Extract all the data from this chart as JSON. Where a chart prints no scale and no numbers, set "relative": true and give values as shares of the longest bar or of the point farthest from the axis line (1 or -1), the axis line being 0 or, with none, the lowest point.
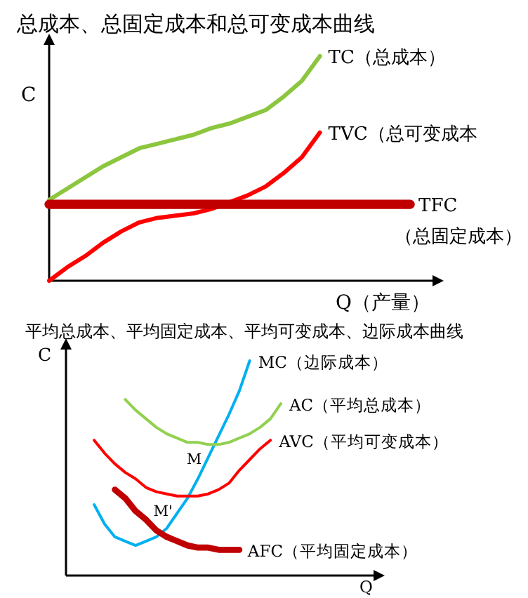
{
  "chart_data": [
    {
      "type": "line",
      "title": "总成本、总固定成本和总可变成本曲线",
      "xlabel": "Q（产量）",
      "ylabel": "C",
      "relative": true,
      "grid": false,
      "marker": "none",
      "categories": [
        null,
        null,
        null,
        null,
        null,
        null,
        null,
        null,
        null,
        null,
        null,
        null,
        null,
        null,
        null,
        null,
        null,
        null,
        null,
        null,
        null
      ],
      "series": [
        {
          "name": "TC（总成本）",
          "color": "#8cc63f",
          "values": [
            0.36,
            0.41,
            0.46,
            0.51,
            0.55,
            0.59,
            0.61,
            0.63,
            0.65,
            0.68,
            0.7,
            0.73,
            0.76,
            0.82,
            0.89,
            1.0,
            null,
            null,
            null,
            null,
            null
          ]
        },
        {
          "name": "TVC（总可变成本",
          "color": "#ff0000",
          "values": [
            0,
            0.06,
            0.11,
            0.17,
            0.22,
            0.26,
            0.28,
            0.29,
            0.3,
            0.32,
            0.35,
            0.38,
            0.42,
            0.48,
            0.55,
            0.66,
            null,
            null,
            null,
            null,
            null
          ]
        },
        {
          "name": "TFC（总固定成本）",
          "color": "#c00000",
          "values": [
            0.34,
            0.34,
            0.34,
            0.34,
            0.34,
            0.34,
            0.34,
            0.34,
            0.34,
            0.34,
            0.34,
            0.34,
            0.34,
            0.34,
            0.34,
            0.34,
            0.34,
            0.34,
            0.34,
            0.34,
            0.34
          ]
        }
      ]
    },
    {
      "type": "line",
      "title": "平均总成本、平均固定成本、平均可变成本、边际成本曲线",
      "xlabel": "Q",
      "ylabel": "C",
      "relative": true,
      "grid": false,
      "marker": "none",
      "categories": [
        null,
        null,
        null,
        null,
        null,
        null,
        null,
        null,
        null,
        null,
        null,
        null,
        null,
        null,
        null,
        null,
        null,
        null,
        null,
        null,
        null
      ],
      "series": [
        {
          "name": "MC（边际成本）",
          "color": "#00b0f0",
          "values": [
            null,
            0.33,
            0.24,
            0.18,
            0.16,
            0.14,
            0.16,
            0.18,
            0.22,
            0.29,
            0.36,
            0.45,
            0.55,
            0.65,
            0.75,
            0.86,
            1.0,
            null,
            null,
            null,
            null
          ]
        },
        {
          "name": "AC（平均总成本）",
          "color": "#92d050",
          "values": [
            null,
            null,
            null,
            null,
            0.82,
            0.77,
            0.73,
            0.69,
            0.66,
            0.64,
            0.62,
            0.62,
            0.61,
            0.61,
            0.62,
            0.64,
            0.66,
            0.69,
            0.73,
            0.8,
            null
          ]
        },
        {
          "name": "AVC（平均可变成本）",
          "color": "#ff0000",
          "values": [
            null,
            0.63,
            0.57,
            0.52,
            0.48,
            0.45,
            0.41,
            0.39,
            0.38,
            0.37,
            0.37,
            0.37,
            0.38,
            0.4,
            0.43,
            0.49,
            0.54,
            0.59,
            0.63,
            null,
            null
          ]
        },
        {
          "name": "AFC（平均固定成本）",
          "color": "#c00000",
          "values": [
            null,
            null,
            null,
            0.4,
            0.36,
            0.3,
            0.26,
            0.21,
            0.18,
            0.16,
            0.14,
            0.13,
            0.13,
            0.12,
            0.12,
            0.12,
            null,
            null,
            null,
            null,
            null
          ]
        }
      ],
      "annotations": [
        {
          "text": "M",
          "y": 0.61
        },
        {
          "text": "M'",
          "y": 0.37
        }
      ]
    }
  ]
}
